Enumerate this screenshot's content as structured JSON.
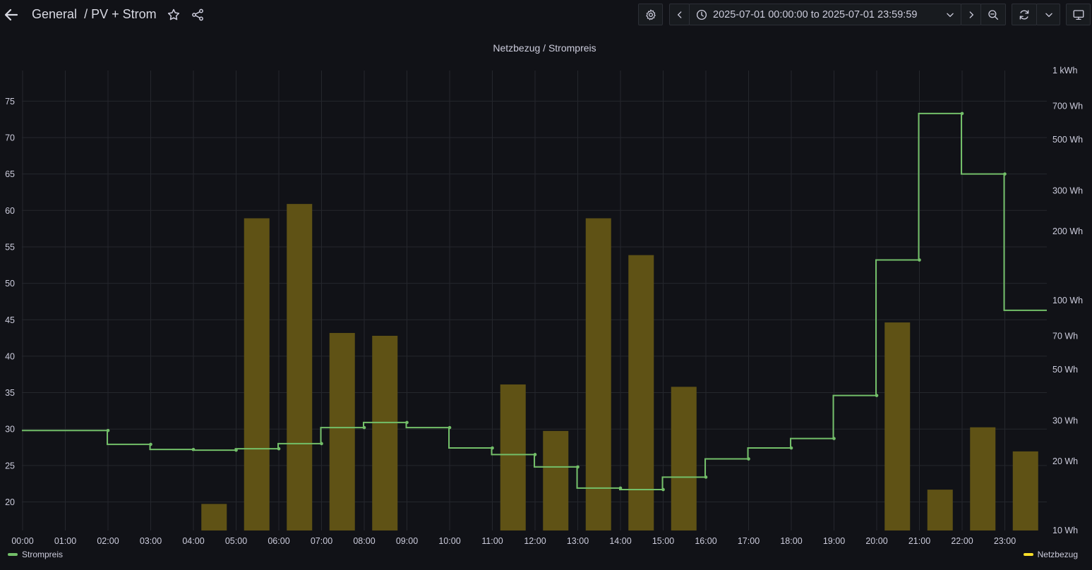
{
  "header": {
    "breadcrumb_folder": "General",
    "breadcrumb_separator": "/",
    "dashboard_title": "PV + Strom",
    "time_range_from": "2025-07-01 00:00:00",
    "time_range_to_word": "to",
    "time_range_to": "2025-07-01 23:59:59",
    "icons": [
      "arrow-left-icon",
      "star-icon",
      "share-icon",
      "gear-icon",
      "chevron-left-icon",
      "clock-icon",
      "chevron-down-icon",
      "chevron-right-icon",
      "zoom-out-icon",
      "refresh-icon",
      "chevron-down-icon",
      "tv-mode-icon"
    ]
  },
  "panel": {
    "title": "Netzbezug / Strompreis"
  },
  "legend": {
    "left_label": "Strompreis",
    "right_label": "Netzbezug"
  },
  "colors": {
    "background": "#111217",
    "price_line": "#73bf69",
    "bars": "#5f5215",
    "bar_legend": "#fade2a",
    "grid": "#25272d",
    "text": "#ccccdc"
  },
  "chart_data": {
    "type": "bar+line",
    "title": "Netzbezug / Strompreis",
    "x_ticks": [
      "00:00",
      "01:00",
      "02:00",
      "03:00",
      "04:00",
      "05:00",
      "06:00",
      "07:00",
      "08:00",
      "09:00",
      "10:00",
      "11:00",
      "12:00",
      "13:00",
      "14:00",
      "15:00",
      "16:00",
      "17:00",
      "18:00",
      "19:00",
      "20:00",
      "21:00",
      "22:00",
      "23:00"
    ],
    "y_left": {
      "ticks": [
        20,
        25,
        30,
        35,
        40,
        45,
        50,
        55,
        60,
        65,
        70,
        75
      ],
      "range": [
        16,
        79
      ]
    },
    "y_right": {
      "scale": "log",
      "ticks": [
        "10 Wh",
        "20 Wh",
        "30 Wh",
        "50 Wh",
        "70 Wh",
        "100 Wh",
        "200 Wh",
        "300 Wh",
        "500 Wh",
        "700 Wh",
        "1 kWh"
      ],
      "range_wh": [
        10,
        1000
      ]
    },
    "grid": true,
    "legend_placement": "bottom",
    "series": [
      {
        "name": "Strompreis",
        "kind": "step-line",
        "axis": "left",
        "points": [
          {
            "hour": 0,
            "value": 29.8
          },
          {
            "hour": 1,
            "value": 29.8
          },
          {
            "hour": 2,
            "value": 27.9
          },
          {
            "hour": 3,
            "value": 27.2
          },
          {
            "hour": 4,
            "value": 27.1
          },
          {
            "hour": 5,
            "value": 27.3
          },
          {
            "hour": 6,
            "value": 28.0
          },
          {
            "hour": 7,
            "value": 30.2
          },
          {
            "hour": 8,
            "value": 30.9
          },
          {
            "hour": 9,
            "value": 30.2
          },
          {
            "hour": 10,
            "value": 27.4
          },
          {
            "hour": 11,
            "value": 26.5
          },
          {
            "hour": 12,
            "value": 24.8
          },
          {
            "hour": 13,
            "value": 21.9
          },
          {
            "hour": 14,
            "value": 21.7
          },
          {
            "hour": 15,
            "value": 23.4
          },
          {
            "hour": 16,
            "value": 25.9
          },
          {
            "hour": 17,
            "value": 27.4
          },
          {
            "hour": 18,
            "value": 28.7
          },
          {
            "hour": 19,
            "value": 34.6
          },
          {
            "hour": 20,
            "value": 53.2
          },
          {
            "hour": 21,
            "value": 73.3
          },
          {
            "hour": 22,
            "value": 65.0
          },
          {
            "hour": 23,
            "value": 46.3
          }
        ]
      },
      {
        "name": "Netzbezug",
        "kind": "bar",
        "axis": "right",
        "unit": "Wh",
        "bars": [
          {
            "hour": 4.5,
            "value_wh": 13
          },
          {
            "hour": 5.5,
            "value_wh": 227
          },
          {
            "hour": 6.5,
            "value_wh": 262
          },
          {
            "hour": 7.5,
            "value_wh": 72
          },
          {
            "hour": 8.5,
            "value_wh": 70
          },
          {
            "hour": 11.5,
            "value_wh": 43
          },
          {
            "hour": 12.5,
            "value_wh": 27
          },
          {
            "hour": 13.5,
            "value_wh": 227
          },
          {
            "hour": 14.5,
            "value_wh": 157
          },
          {
            "hour": 15.5,
            "value_wh": 42
          },
          {
            "hour": 20.5,
            "value_wh": 80
          },
          {
            "hour": 21.5,
            "value_wh": 15
          },
          {
            "hour": 22.5,
            "value_wh": 28
          },
          {
            "hour": 23.5,
            "value_wh": 22
          }
        ]
      }
    ]
  }
}
